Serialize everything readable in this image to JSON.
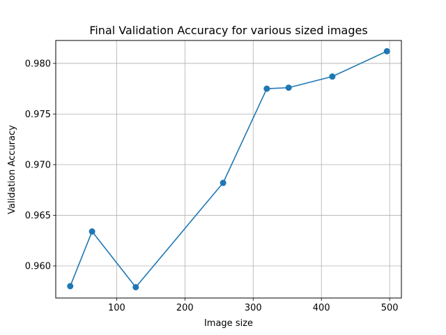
{
  "chart_data": {
    "type": "line",
    "title": "Final Validation Accuracy for various sized images",
    "xlabel": "Image size",
    "ylabel": "Validation Accuracy",
    "x": [
      32,
      64,
      128,
      256,
      320,
      352,
      416,
      496
    ],
    "series": [
      {
        "values": [
          0.958,
          0.9634,
          0.9579,
          0.9682,
          0.9775,
          0.9776,
          0.9787,
          0.9812
        ]
      }
    ],
    "xlim": [
      10.8,
      517.2
    ],
    "ylim": [
      0.95683,
      0.98226
    ],
    "xticks": [
      100,
      200,
      300,
      400,
      500
    ],
    "xtick_labels": [
      "100",
      "200",
      "300",
      "400",
      "500"
    ],
    "yticks": [
      0.96,
      0.965,
      0.97,
      0.975,
      0.98
    ],
    "ytick_labels": [
      "0.960",
      "0.965",
      "0.970",
      "0.975",
      "0.980"
    ],
    "grid": true,
    "line_color": "#1f77b4",
    "marker": "circle"
  }
}
